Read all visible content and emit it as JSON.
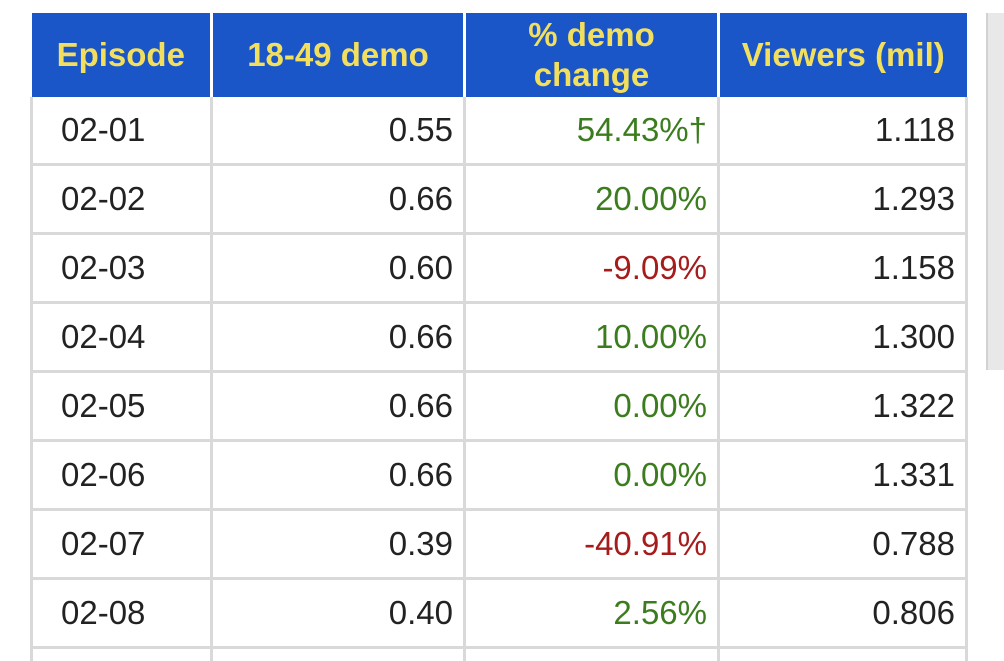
{
  "table": {
    "headers": {
      "episode": "Episode",
      "demo": "18-49 demo",
      "demo_change": "% demo change",
      "viewers": "Viewers (mil)"
    },
    "rows": [
      {
        "episode": "02-01",
        "demo": "0.55",
        "change": "54.43%†",
        "trend": "up",
        "viewers": "1.118"
      },
      {
        "episode": "02-02",
        "demo": "0.66",
        "change": "20.00%",
        "trend": "up",
        "viewers": "1.293"
      },
      {
        "episode": "02-03",
        "demo": "0.60",
        "change": "-9.09%",
        "trend": "down",
        "viewers": "1.158"
      },
      {
        "episode": "02-04",
        "demo": "0.66",
        "change": "10.00%",
        "trend": "up",
        "viewers": "1.300"
      },
      {
        "episode": "02-05",
        "demo": "0.66",
        "change": "0.00%",
        "trend": "up",
        "viewers": "1.322"
      },
      {
        "episode": "02-06",
        "demo": "0.66",
        "change": "0.00%",
        "trend": "up",
        "viewers": "1.331"
      },
      {
        "episode": "02-07",
        "demo": "0.39",
        "change": "-40.91%",
        "trend": "down",
        "viewers": "0.788"
      },
      {
        "episode": "02-08",
        "demo": "0.40",
        "change": "2.56%",
        "trend": "up",
        "viewers": "0.806"
      }
    ]
  },
  "colors": {
    "header_bg": "#1b56c9",
    "header_text": "#f3df5e",
    "positive": "#3b7d1e",
    "negative": "#a61b1b",
    "grid": "#d9d9d9"
  }
}
